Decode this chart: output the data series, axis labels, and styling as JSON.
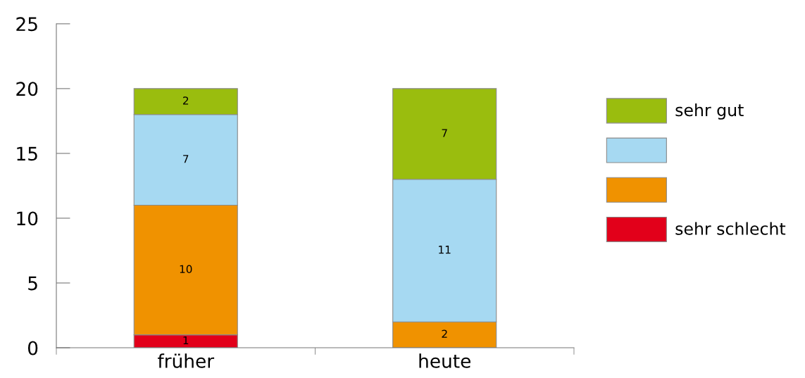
{
  "chart_data": {
    "type": "bar",
    "stacked": true,
    "categories": [
      "früher",
      "heute"
    ],
    "series": [
      {
        "name": "sehr schlecht",
        "color": "#e2001a",
        "values": [
          1,
          null
        ]
      },
      {
        "color": "#f09200",
        "values": [
          10,
          2
        ]
      },
      {
        "color": "#a6d9f2",
        "values": [
          7,
          11
        ]
      },
      {
        "name": "sehr gut",
        "color": "#9abd0e",
        "values": [
          2,
          7
        ]
      }
    ],
    "ylim": [
      0,
      25
    ],
    "yticks": [
      0,
      5,
      10,
      15,
      20,
      25
    ],
    "data_labels": true,
    "legend": "right",
    "grid": false
  }
}
